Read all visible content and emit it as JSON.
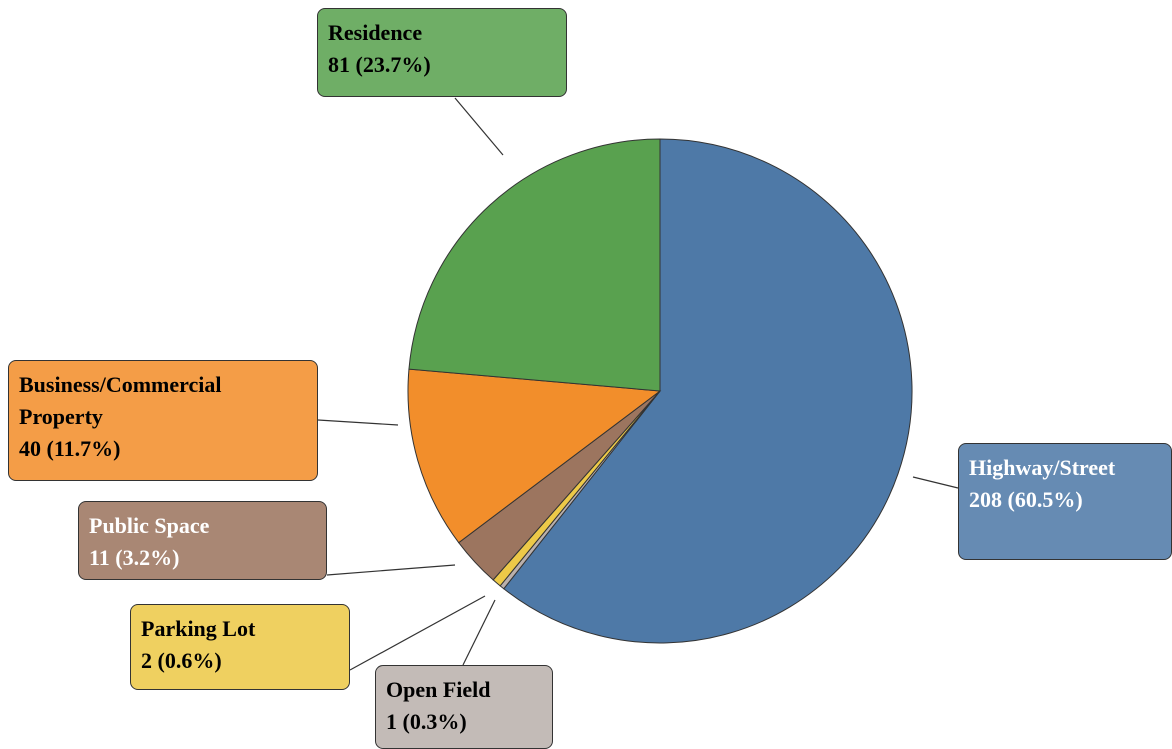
{
  "chart_data": {
    "type": "pie",
    "categories": [
      "Highway/Street",
      "Open Field",
      "Parking Lot",
      "Public Space",
      "Business/Commercial Property",
      "Residence"
    ],
    "values": [
      208,
      1,
      2,
      11,
      40,
      81
    ],
    "value_labels": [
      "208 (60.5%)",
      "1 (0.3%)",
      "2 (0.6%)",
      "11 (3.2%)",
      "40 (11.7%)",
      "81 (23.7%)"
    ],
    "colors": [
      "#4e79a7",
      "#bab0ac",
      "#edc948",
      "#9c755f",
      "#f28e2b",
      "#59a14f"
    ]
  }
}
